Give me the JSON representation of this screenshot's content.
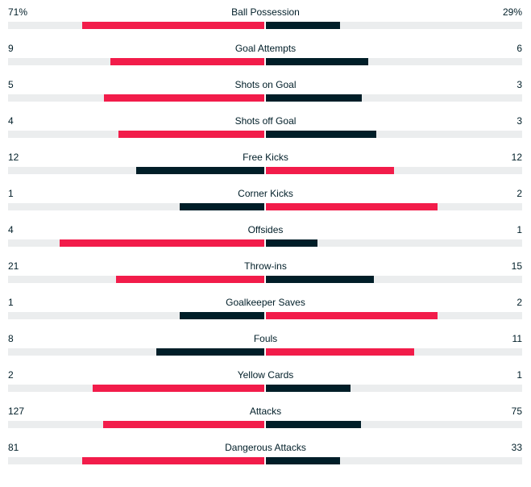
{
  "colors": {
    "leader": "#f21c4a",
    "trailer": "#001e28",
    "track": "#ebedee"
  },
  "stats": [
    {
      "label": "Ball Possession",
      "home": "71%",
      "away": "29%",
      "home_pct": 71,
      "away_pct": 29
    },
    {
      "label": "Goal Attempts",
      "home": "9",
      "away": "6",
      "home_pct": 60,
      "away_pct": 40
    },
    {
      "label": "Shots on Goal",
      "home": "5",
      "away": "3",
      "home_pct": 62.5,
      "away_pct": 37.5
    },
    {
      "label": "Shots off Goal",
      "home": "4",
      "away": "3",
      "home_pct": 57,
      "away_pct": 43
    },
    {
      "label": "Free Kicks",
      "home": "12",
      "away": "12",
      "home_pct": 50,
      "away_pct": 50
    },
    {
      "label": "Corner Kicks",
      "home": "1",
      "away": "2",
      "home_pct": 33,
      "away_pct": 67
    },
    {
      "label": "Offsides",
      "home": "4",
      "away": "1",
      "home_pct": 80,
      "away_pct": 20
    },
    {
      "label": "Throw-ins",
      "home": "21",
      "away": "15",
      "home_pct": 58,
      "away_pct": 42
    },
    {
      "label": "Goalkeeper Saves",
      "home": "1",
      "away": "2",
      "home_pct": 33,
      "away_pct": 67
    },
    {
      "label": "Fouls",
      "home": "8",
      "away": "11",
      "home_pct": 42,
      "away_pct": 58
    },
    {
      "label": "Yellow Cards",
      "home": "2",
      "away": "1",
      "home_pct": 67,
      "away_pct": 33
    },
    {
      "label": "Attacks",
      "home": "127",
      "away": "75",
      "home_pct": 63,
      "away_pct": 37
    },
    {
      "label": "Dangerous Attacks",
      "home": "81",
      "away": "33",
      "home_pct": 71,
      "away_pct": 29
    }
  ]
}
